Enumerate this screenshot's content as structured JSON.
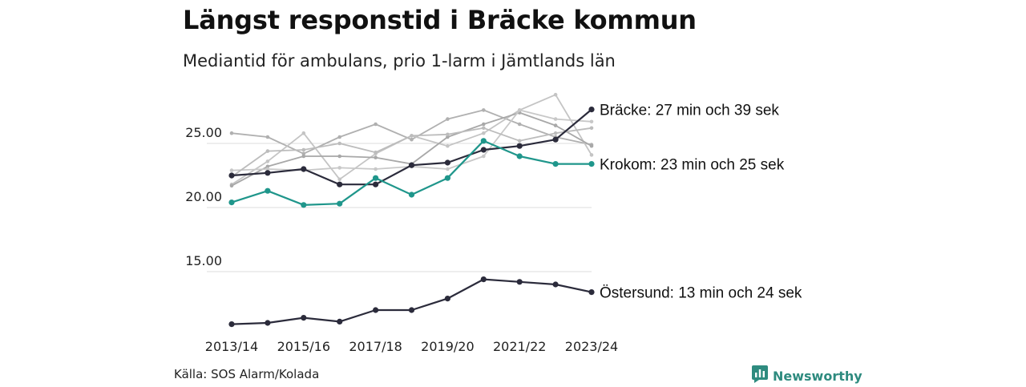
{
  "chart_data": {
    "type": "line",
    "title": "Längst responstid i Bräcke kommun",
    "subtitle": "Mediantid för ambulans, prio 1-larm i Jämtlands län",
    "x": [
      "2013/14",
      "2014/15",
      "2015/16",
      "2016/17",
      "2017/18",
      "2018/19",
      "2019/20",
      "2020/21",
      "2021/22",
      "2022/23",
      "2023/24"
    ],
    "x_tick_labels": [
      "2013/14",
      "2015/16",
      "2017/18",
      "2019/20",
      "2021/22",
      "2023/24"
    ],
    "y_ticks": [
      15.0,
      20.0,
      25.0
    ],
    "y_tick_labels": [
      "15.00",
      "20.00",
      "25.00"
    ],
    "ylim": [
      10,
      28.5
    ],
    "grid": "horizontal",
    "highlighted_series": [
      {
        "label": "Bräcke: 27 min och 39 sek",
        "color": "#2b2b3b",
        "values": [
          22.5,
          22.7,
          23.0,
          21.8,
          21.8,
          23.3,
          23.5,
          24.5,
          24.8,
          25.3,
          27.65
        ]
      },
      {
        "label": "Krokom: 23 min och 25 sek",
        "color": "#1f968b",
        "values": [
          20.4,
          21.3,
          20.2,
          20.3,
          22.3,
          21.0,
          22.3,
          25.2,
          24.0,
          23.4,
          23.4
        ]
      },
      {
        "label": "Östersund: 13 min och 24 sek",
        "color": "#2b2b3b",
        "values": [
          10.9,
          11.0,
          11.4,
          11.1,
          12.0,
          12.0,
          12.9,
          14.4,
          14.2,
          14.0,
          13.4
        ]
      }
    ],
    "background_series": [
      {
        "color": "#b0b0b0",
        "values": [
          25.8,
          25.5,
          24.2,
          25.5,
          26.5,
          25.3,
          26.9,
          27.6,
          26.5,
          25.5,
          24.9
        ]
      },
      {
        "color": "#c4c4c4",
        "values": [
          21.8,
          23.6,
          25.8,
          22.2,
          24.2,
          25.6,
          24.8,
          25.8,
          27.6,
          28.8,
          24.1
        ]
      },
      {
        "color": "#a8a8a8",
        "values": [
          21.7,
          23.2,
          24.0,
          24.0,
          23.9,
          23.4,
          25.5,
          26.5,
          27.4,
          26.4,
          24.8
        ]
      },
      {
        "color": "#c8c8c8",
        "values": [
          22.9,
          23.0,
          22.9,
          23.1,
          23.0,
          23.2,
          23.0,
          24.0,
          27.6,
          26.9,
          26.7
        ]
      },
      {
        "color": "#bcbcbc",
        "values": [
          22.4,
          24.4,
          24.5,
          25.0,
          24.3,
          25.6,
          25.7,
          26.2,
          25.2,
          25.8,
          26.2
        ]
      }
    ]
  },
  "source": "Källa: SOS Alarm/Kolada",
  "brand": {
    "name": "Newsworthy",
    "icon": "newsworthy-logo-icon",
    "color": "#2e8b7f"
  }
}
